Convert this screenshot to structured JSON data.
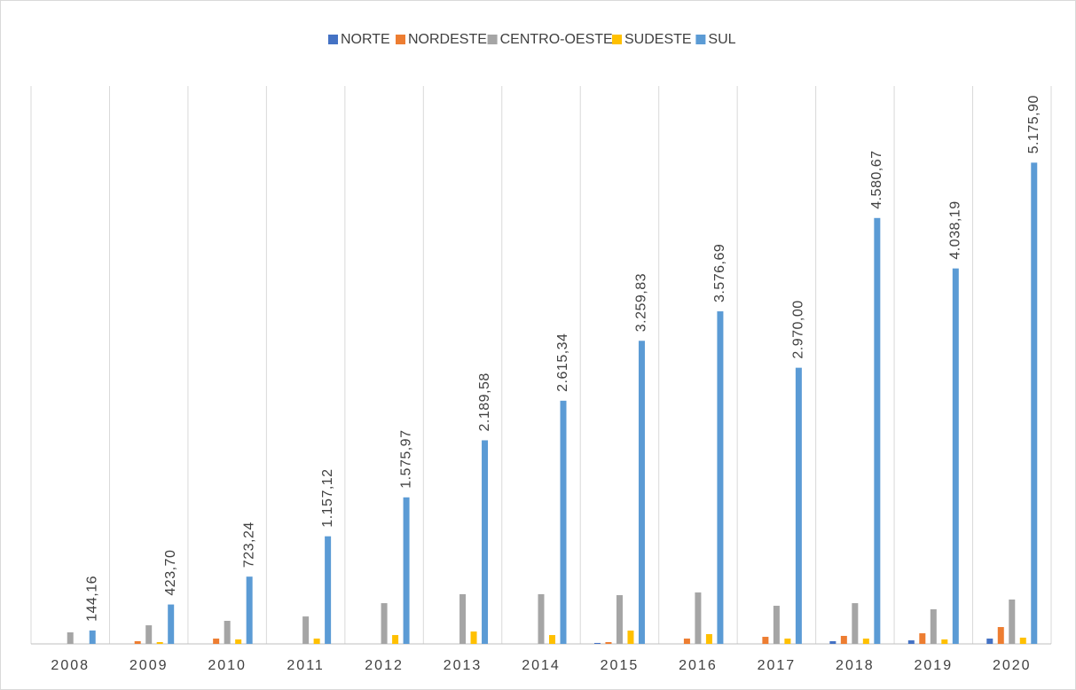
{
  "chart_data": {
    "type": "bar",
    "categories": [
      "2008",
      "2009",
      "2010",
      "2011",
      "2012",
      "2013",
      "2014",
      "2015",
      "2016",
      "2017",
      "2018",
      "2019",
      "2020"
    ],
    "series": [
      {
        "name": "NORTE",
        "color": "#4472c4",
        "values": [
          0,
          0,
          0,
          0,
          0,
          0,
          0,
          10,
          0,
          0,
          29,
          38,
          57
        ]
      },
      {
        "name": "NORDESTE",
        "color": "#ed7d31",
        "values": [
          0,
          29,
          57,
          0,
          0,
          0,
          0,
          19,
          57,
          76,
          86,
          114,
          181
        ]
      },
      {
        "name": "CENTRO-OESTE",
        "color": "#a5a5a5",
        "values": [
          124,
          200,
          248,
          295,
          438,
          534,
          534,
          524,
          553,
          410,
          438,
          372,
          477
        ]
      },
      {
        "name": "SUDESTE",
        "color": "#ffc000",
        "values": [
          0,
          19,
          48,
          57,
          95,
          133,
          95,
          143,
          105,
          57,
          57,
          48,
          67
        ]
      },
      {
        "name": "SUL",
        "color": "#5b9bd5",
        "values": [
          144.16,
          423.7,
          723.24,
          1157.12,
          1575.97,
          2189.58,
          2615.34,
          3259.83,
          3576.69,
          2970.0,
          4580.67,
          4038.19,
          5175.9
        ],
        "value_labels": [
          "144,16",
          "423,70",
          "723,24",
          "1.157,12",
          "1.575,97",
          "2.189,58",
          "2.615,34",
          "3.259,83",
          "3.576,69",
          "2.970,00",
          "4.580,67",
          "4.038,19",
          "5.175,90"
        ]
      }
    ],
    "ylim": [
      0,
      6000
    ],
    "grid": true,
    "legend": "top"
  }
}
